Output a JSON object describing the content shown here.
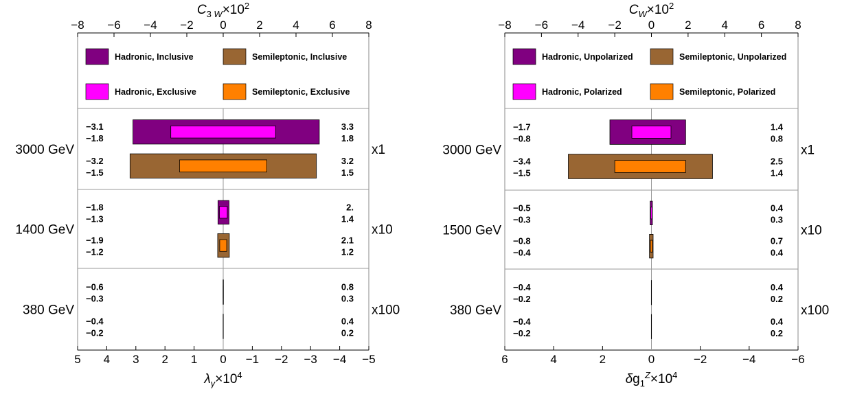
{
  "chart_data": [
    {
      "type": "bar",
      "title": "",
      "top_axis": {
        "label": "C3W×10^2",
        "range": [
          -8,
          8
        ],
        "ticks": [
          "−8",
          "−6",
          "−4",
          "−2",
          "0",
          "2",
          "4",
          "6",
          "8"
        ]
      },
      "bottom_axis": {
        "label": "λγ×10^4",
        "range": [
          5,
          -5
        ],
        "ticks": [
          "5",
          "4",
          "3",
          "2",
          "1",
          "0",
          "−1",
          "−2",
          "−3",
          "−4",
          "−5"
        ]
      },
      "legend": [
        {
          "name": "Hadronic, Inclusive",
          "color": "#800080"
        },
        {
          "name": "Semileptonic, Inclusive",
          "color": "#996633"
        },
        {
          "name": "Hadronic, Exclusive",
          "color": "#ff00ff"
        },
        {
          "name": "Semileptonic, Exclusive",
          "color": "#ff8000"
        }
      ],
      "rows": [
        {
          "energy": "3000 GeV",
          "scale": "x1",
          "bars": [
            {
              "series": "Hadronic, Inclusive",
              "lo": -3.1,
              "hi": 3.3
            },
            {
              "series": "Hadronic, Exclusive",
              "lo": -1.8,
              "hi": 1.8
            },
            {
              "series": "Semileptonic, Inclusive",
              "lo": -3.2,
              "hi": 3.2
            },
            {
              "series": "Semileptonic, Exclusive",
              "lo": -1.5,
              "hi": 1.5
            }
          ],
          "labels_left": [
            "−3.1",
            "−1.8",
            "−3.2",
            "−1.5"
          ],
          "labels_right": [
            "3.3",
            "1.8",
            "3.2",
            "1.5"
          ]
        },
        {
          "energy": "1400 GeV",
          "scale": "x10",
          "bars": [
            {
              "series": "Hadronic, Inclusive",
              "lo": -1.8,
              "hi": 2.0
            },
            {
              "series": "Hadronic, Exclusive",
              "lo": -1.3,
              "hi": 1.4
            },
            {
              "series": "Semileptonic, Inclusive",
              "lo": -1.9,
              "hi": 2.1
            },
            {
              "series": "Semileptonic, Exclusive",
              "lo": -1.2,
              "hi": 1.2
            }
          ],
          "labels_left": [
            "−1.8",
            "−1.3",
            "−1.9",
            "−1.2"
          ],
          "labels_right": [
            "2.",
            "1.4",
            "2.1",
            "1.2"
          ]
        },
        {
          "energy": "380 GeV",
          "scale": "x100",
          "bars": [
            {
              "series": "Hadronic, Inclusive",
              "lo": -0.6,
              "hi": 0.8
            },
            {
              "series": "Hadronic, Exclusive",
              "lo": -0.3,
              "hi": 0.3
            },
            {
              "series": "Semileptonic, Inclusive",
              "lo": -0.4,
              "hi": 0.4
            },
            {
              "series": "Semileptonic, Exclusive",
              "lo": -0.2,
              "hi": 0.2
            }
          ],
          "labels_left": [
            "−0.6",
            "−0.3",
            "−0.4",
            "−0.2"
          ],
          "labels_right": [
            "0.8",
            "0.3",
            "0.4",
            "0.2"
          ]
        }
      ]
    },
    {
      "type": "bar",
      "title": "",
      "top_axis": {
        "label": "CW×10^2",
        "range": [
          -8,
          8
        ],
        "ticks": [
          "−8",
          "−6",
          "−4",
          "−2",
          "0",
          "2",
          "4",
          "6",
          "8"
        ]
      },
      "bottom_axis": {
        "label": "δg1Z×10^4",
        "range": [
          6,
          -6
        ],
        "ticks": [
          "6",
          "4",
          "2",
          "0",
          "−2",
          "−4",
          "−6"
        ]
      },
      "legend": [
        {
          "name": "Hadronic, Unpolarized",
          "color": "#800080"
        },
        {
          "name": "Semileptonic, Unpolarized",
          "color": "#996633"
        },
        {
          "name": "Hadronic, Polarized",
          "color": "#ff00ff"
        },
        {
          "name": "Semileptonic, Polarized",
          "color": "#ff8000"
        }
      ],
      "rows": [
        {
          "energy": "3000 GeV",
          "scale": "x1",
          "bars": [
            {
              "series": "Hadronic, Unpolarized",
              "lo": -1.7,
              "hi": 1.4
            },
            {
              "series": "Hadronic, Polarized",
              "lo": -0.8,
              "hi": 0.8
            },
            {
              "series": "Semileptonic, Unpolarized",
              "lo": -3.4,
              "hi": 2.5
            },
            {
              "series": "Semileptonic, Polarized",
              "lo": -1.5,
              "hi": 1.4
            }
          ],
          "labels_left": [
            "−1.7",
            "−0.8",
            "−3.4",
            "−1.5"
          ],
          "labels_right": [
            "1.4",
            "0.8",
            "2.5",
            "1.4"
          ]
        },
        {
          "energy": "1500 GeV",
          "scale": "x10",
          "bars": [
            {
              "series": "Hadronic, Unpolarized",
              "lo": -0.5,
              "hi": 0.4
            },
            {
              "series": "Hadronic, Polarized",
              "lo": -0.3,
              "hi": 0.3
            },
            {
              "series": "Semileptonic, Unpolarized",
              "lo": -0.8,
              "hi": 0.7
            },
            {
              "series": "Semileptonic, Polarized",
              "lo": -0.4,
              "hi": 0.4
            }
          ],
          "labels_left": [
            "−0.5",
            "−0.3",
            "−0.8",
            "−0.4"
          ],
          "labels_right": [
            "0.4",
            "0.3",
            "0.7",
            "0.4"
          ]
        },
        {
          "energy": "380 GeV",
          "scale": "x100",
          "bars": [
            {
              "series": "Hadronic, Unpolarized",
              "lo": -0.4,
              "hi": 0.4
            },
            {
              "series": "Hadronic, Polarized",
              "lo": -0.2,
              "hi": 0.2
            },
            {
              "series": "Semileptonic, Unpolarized",
              "lo": -0.4,
              "hi": 0.4
            },
            {
              "series": "Semileptonic, Polarized",
              "lo": -0.2,
              "hi": 0.2
            }
          ],
          "labels_left": [
            "−0.4",
            "−0.2",
            "−0.4",
            "−0.2"
          ],
          "labels_right": [
            "0.4",
            "0.2",
            "0.4",
            "0.2"
          ]
        }
      ]
    }
  ]
}
